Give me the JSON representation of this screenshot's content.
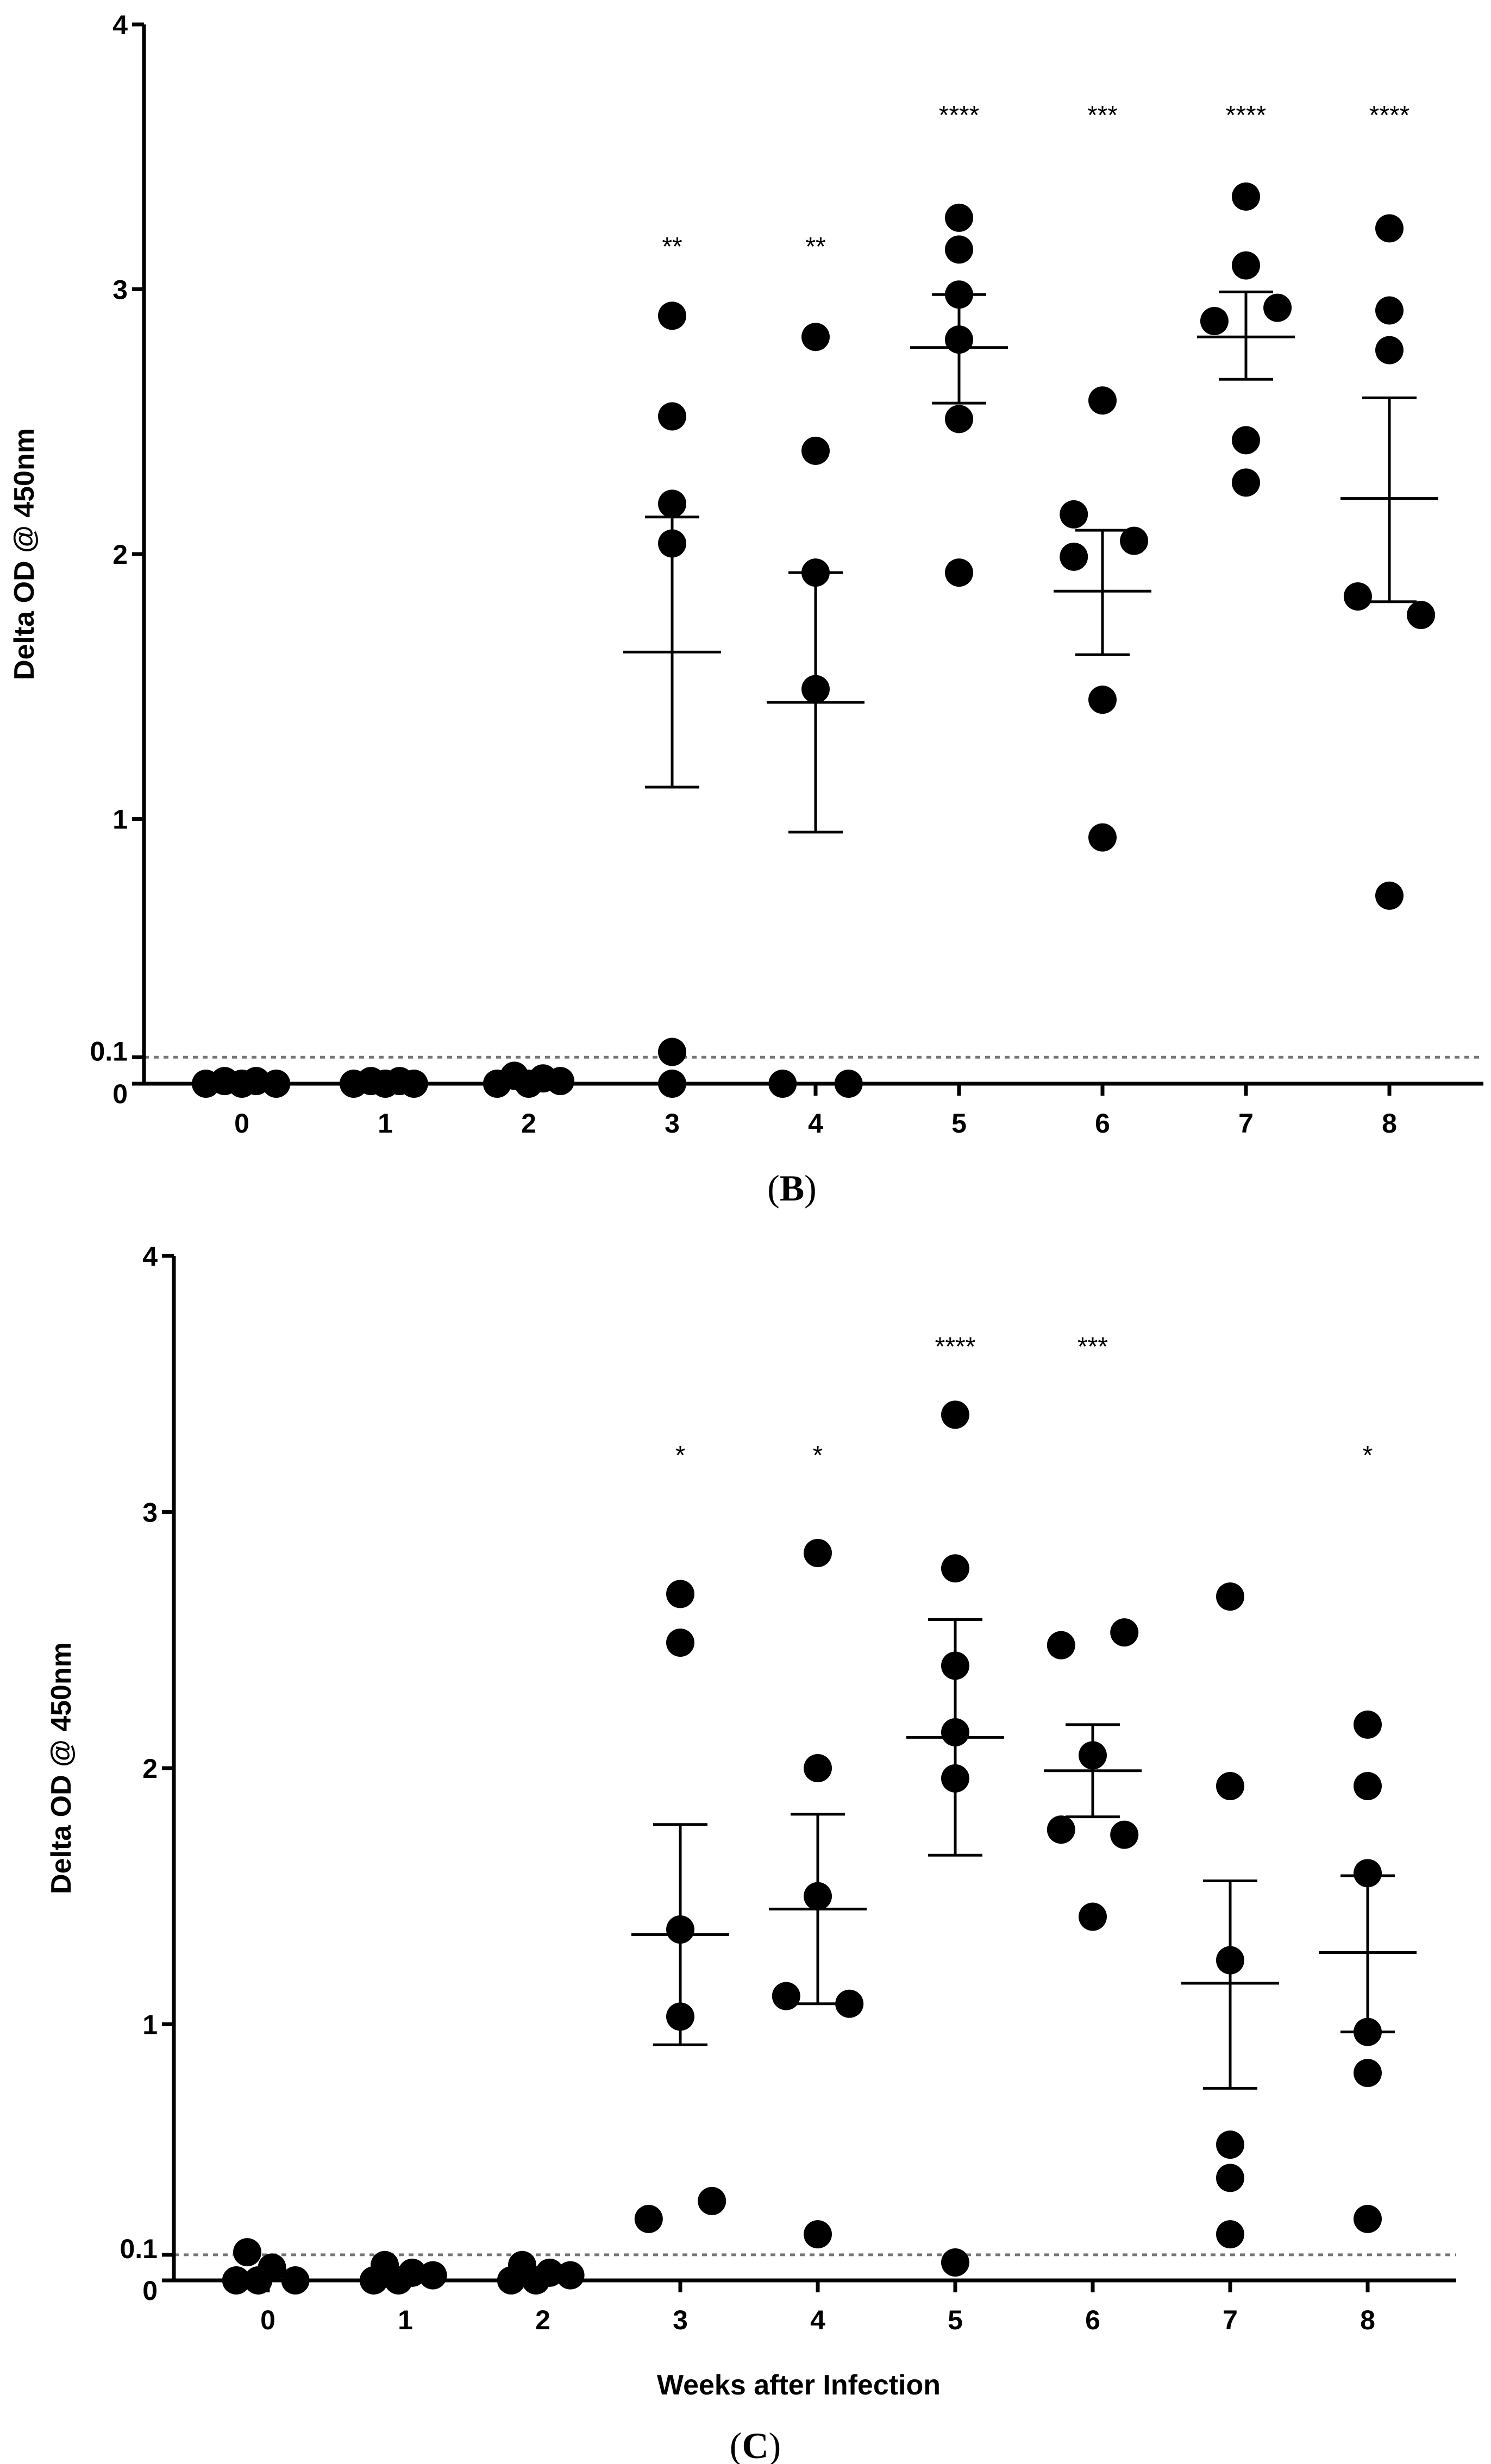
{
  "chart_data": [
    {
      "type": "scatter",
      "panel_label": "B",
      "xlabel": "",
      "ylabel": "Delta OD @ 450nm",
      "categories": [
        "0",
        "1",
        "2",
        "3",
        "4",
        "5",
        "6",
        "7",
        "8"
      ],
      "yticks": [
        {
          "value": 0,
          "label": "0"
        },
        {
          "value": 0.1,
          "label": "0.1"
        },
        {
          "value": 1,
          "label": "1"
        },
        {
          "value": 2,
          "label": "2"
        },
        {
          "value": 3,
          "label": "3"
        },
        {
          "value": 4,
          "label": "4"
        }
      ],
      "ylim": [
        0,
        4
      ],
      "reference_line": 0.1,
      "groups": [
        {
          "week": "0",
          "points": [
            {
              "dx": -0.25,
              "y": 0
            },
            {
              "dx": -0.12,
              "y": 0.01
            },
            {
              "dx": 0,
              "y": 0
            },
            {
              "dx": 0.1,
              "y": 0.01
            },
            {
              "dx": 0.24,
              "y": 0
            }
          ],
          "mean": null,
          "upper": null,
          "lower": null,
          "significance": ""
        },
        {
          "week": "1",
          "points": [
            {
              "dx": -0.22,
              "y": 0
            },
            {
              "dx": -0.1,
              "y": 0.01
            },
            {
              "dx": 0,
              "y": 0
            },
            {
              "dx": 0.1,
              "y": 0.01
            },
            {
              "dx": 0.2,
              "y": 0
            }
          ],
          "mean": null,
          "upper": null,
          "lower": null,
          "significance": ""
        },
        {
          "week": "2",
          "points": [
            {
              "dx": -0.22,
              "y": 0
            },
            {
              "dx": -0.1,
              "y": 0.03
            },
            {
              "dx": 0,
              "y": 0
            },
            {
              "dx": 0.1,
              "y": 0.02
            },
            {
              "dx": 0.22,
              "y": 0.01
            }
          ],
          "mean": null,
          "upper": null,
          "lower": null,
          "significance": ""
        },
        {
          "week": "3",
          "points": [
            {
              "dx": 0,
              "y": 2.9
            },
            {
              "dx": 0,
              "y": 2.52
            },
            {
              "dx": 0,
              "y": 2.19
            },
            {
              "dx": 0,
              "y": 2.04
            },
            {
              "dx": 0,
              "y": 0.12
            },
            {
              "dx": 0,
              "y": 0
            }
          ],
          "mean": 1.63,
          "upper": 2.14,
          "lower": 1.12,
          "significance": "**"
        },
        {
          "week": "4",
          "points": [
            {
              "dx": 0,
              "y": 2.82
            },
            {
              "dx": 0,
              "y": 2.39
            },
            {
              "dx": 0,
              "y": 1.93
            },
            {
              "dx": 0,
              "y": 1.49
            },
            {
              "dx": -0.23,
              "y": 0
            },
            {
              "dx": 0.23,
              "y": 0
            }
          ],
          "mean": 1.44,
          "upper": 1.93,
          "lower": 0.95,
          "significance": "**"
        },
        {
          "week": "5",
          "points": [
            {
              "dx": 0,
              "y": 3.27
            },
            {
              "dx": 0,
              "y": 3.15
            },
            {
              "dx": 0,
              "y": 2.98
            },
            {
              "dx": 0,
              "y": 2.81
            },
            {
              "dx": 0,
              "y": 2.51
            },
            {
              "dx": 0,
              "y": 1.93
            }
          ],
          "mean": 2.78,
          "upper": 2.98,
          "lower": 2.57,
          "significance": "****"
        },
        {
          "week": "6",
          "points": [
            {
              "dx": 0,
              "y": 2.58
            },
            {
              "dx": -0.2,
              "y": 2.15
            },
            {
              "dx": -0.2,
              "y": 1.99
            },
            {
              "dx": 0.22,
              "y": 2.05
            },
            {
              "dx": 0,
              "y": 1.45
            },
            {
              "dx": 0,
              "y": 0.93
            }
          ],
          "mean": 1.86,
          "upper": 2.09,
          "lower": 1.62,
          "significance": "***"
        },
        {
          "week": "7",
          "points": [
            {
              "dx": 0,
              "y": 3.35
            },
            {
              "dx": 0,
              "y": 3.09
            },
            {
              "dx": -0.22,
              "y": 2.88
            },
            {
              "dx": 0.22,
              "y": 2.93
            },
            {
              "dx": 0,
              "y": 2.43
            },
            {
              "dx": 0,
              "y": 2.27
            }
          ],
          "mean": 2.82,
          "upper": 2.99,
          "lower": 2.66,
          "significance": "****"
        },
        {
          "week": "8",
          "points": [
            {
              "dx": 0,
              "y": 3.23
            },
            {
              "dx": 0,
              "y": 2.92
            },
            {
              "dx": 0,
              "y": 2.77
            },
            {
              "dx": -0.22,
              "y": 1.84
            },
            {
              "dx": 0.22,
              "y": 1.77
            },
            {
              "dx": 0,
              "y": 0.71
            }
          ],
          "mean": 2.21,
          "upper": 2.59,
          "lower": 1.82,
          "significance": "****"
        }
      ]
    },
    {
      "type": "scatter",
      "panel_label": "C",
      "xlabel": "Weeks after Infection",
      "ylabel": "Delta OD @ 450nm",
      "categories": [
        "0",
        "1",
        "2",
        "3",
        "4",
        "5",
        "6",
        "7",
        "8"
      ],
      "yticks": [
        {
          "value": 0,
          "label": "0"
        },
        {
          "value": 0.1,
          "label": "0.1"
        },
        {
          "value": 1,
          "label": "1"
        },
        {
          "value": 2,
          "label": "2"
        },
        {
          "value": 3,
          "label": "3"
        },
        {
          "value": 4,
          "label": "4"
        }
      ],
      "ylim": [
        0,
        4
      ],
      "reference_line": 0.1,
      "groups": [
        {
          "week": "0",
          "points": [
            {
              "dx": -0.23,
              "y": 0
            },
            {
              "dx": -0.15,
              "y": 0.11
            },
            {
              "dx": -0.07,
              "y": 0
            },
            {
              "dx": 0.03,
              "y": 0.05
            },
            {
              "dx": 0.2,
              "y": 0
            }
          ],
          "mean": null,
          "upper": null,
          "lower": null,
          "significance": ""
        },
        {
          "week": "1",
          "points": [
            {
              "dx": -0.23,
              "y": 0
            },
            {
              "dx": -0.15,
              "y": 0.06
            },
            {
              "dx": -0.05,
              "y": 0
            },
            {
              "dx": 0.05,
              "y": 0.03
            },
            {
              "dx": 0.2,
              "y": 0.02
            }
          ],
          "mean": null,
          "upper": null,
          "lower": null,
          "significance": ""
        },
        {
          "week": "2",
          "points": [
            {
              "dx": -0.23,
              "y": 0
            },
            {
              "dx": -0.15,
              "y": 0.06
            },
            {
              "dx": -0.05,
              "y": 0
            },
            {
              "dx": 0.05,
              "y": 0.03
            },
            {
              "dx": 0.2,
              "y": 0.02
            }
          ],
          "mean": null,
          "upper": null,
          "lower": null,
          "significance": ""
        },
        {
          "week": "3",
          "points": [
            {
              "dx": 0,
              "y": 2.68
            },
            {
              "dx": 0,
              "y": 2.49
            },
            {
              "dx": 0,
              "y": 1.37
            },
            {
              "dx": 0,
              "y": 1.03
            },
            {
              "dx": -0.23,
              "y": 0.24
            },
            {
              "dx": 0.23,
              "y": 0.31
            }
          ],
          "mean": 1.35,
          "upper": 1.78,
          "lower": 0.92,
          "significance": "*"
        },
        {
          "week": "4",
          "points": [
            {
              "dx": 0,
              "y": 2.84
            },
            {
              "dx": 0,
              "y": 2.0
            },
            {
              "dx": -0.23,
              "y": 1.11
            },
            {
              "dx": 0,
              "y": 1.5
            },
            {
              "dx": 0.23,
              "y": 1.08
            },
            {
              "dx": 0,
              "y": 0.18
            }
          ],
          "mean": 1.45,
          "upper": 1.82,
          "lower": 1.08,
          "significance": "*"
        },
        {
          "week": "5",
          "points": [
            {
              "dx": 0,
              "y": 3.38
            },
            {
              "dx": 0,
              "y": 2.78
            },
            {
              "dx": 0,
              "y": 2.4
            },
            {
              "dx": 0,
              "y": 2.14
            },
            {
              "dx": 0,
              "y": 1.96
            },
            {
              "dx": 0,
              "y": 0.07
            }
          ],
          "mean": 2.12,
          "upper": 2.58,
          "lower": 1.66,
          "significance": "****"
        },
        {
          "week": "6",
          "points": [
            {
              "dx": -0.23,
              "y": 2.48
            },
            {
              "dx": 0.23,
              "y": 2.53
            },
            {
              "dx": 0,
              "y": 2.05
            },
            {
              "dx": -0.23,
              "y": 1.76
            },
            {
              "dx": 0.23,
              "y": 1.74
            },
            {
              "dx": 0,
              "y": 1.42
            }
          ],
          "mean": 1.99,
          "upper": 2.17,
          "lower": 1.81,
          "significance": "***"
        },
        {
          "week": "7",
          "points": [
            {
              "dx": 0,
              "y": 2.67
            },
            {
              "dx": 0,
              "y": 1.93
            },
            {
              "dx": 0,
              "y": 1.25
            },
            {
              "dx": 0,
              "y": 0.53
            },
            {
              "dx": 0,
              "y": 0.4
            },
            {
              "dx": 0,
              "y": 0.18
            }
          ],
          "mean": 1.16,
          "upper": 1.56,
          "lower": 0.75,
          "significance": ""
        },
        {
          "week": "8",
          "points": [
            {
              "dx": 0,
              "y": 2.17
            },
            {
              "dx": 0,
              "y": 1.93
            },
            {
              "dx": 0,
              "y": 1.59
            },
            {
              "dx": 0,
              "y": 0.97
            },
            {
              "dx": 0,
              "y": 0.81
            },
            {
              "dx": 0,
              "y": 0.24
            }
          ],
          "mean": 1.28,
          "upper": 1.58,
          "lower": 0.97,
          "significance": "*"
        }
      ]
    }
  ]
}
